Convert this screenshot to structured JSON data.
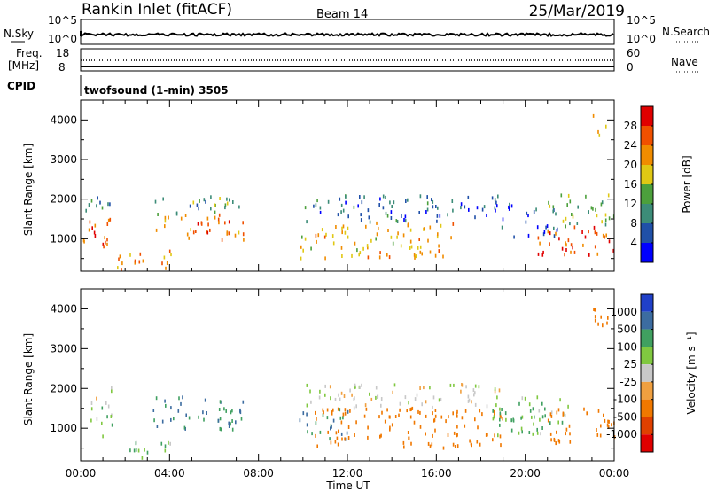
{
  "header": {
    "station": "Rankin Inlet (fitACF)",
    "beam": "Beam 14",
    "date": "25/Mar/2019"
  },
  "noise_panel": {
    "left_label": "N.Sky",
    "right_label": "N.Search",
    "left_ticks": [
      "10^5",
      "10^0"
    ],
    "right_ticks": [
      "10^5",
      "10^0"
    ]
  },
  "freq_panel": {
    "left_label_line1": "Freq.",
    "left_label_line2": "[MHz]",
    "right_label": "Nave",
    "left_ticks": [
      "18",
      "8"
    ],
    "right_ticks": [
      "60",
      "0"
    ]
  },
  "cpid_panel": {
    "label": "CPID",
    "mode": "twofsound (1-min) 3505"
  },
  "colors": {
    "power_scale": [
      "#0000ff",
      "#2050a8",
      "#3c8c78",
      "#4ca03c",
      "#e0c814",
      "#f08c00",
      "#f05000",
      "#e00000"
    ],
    "velocity_scale": [
      "#2040c8",
      "#3c6ca0",
      "#40a060",
      "#80c840",
      "#c8c8c8",
      "#f0a040",
      "#f07800",
      "#e04000",
      "#e00000"
    ]
  },
  "chart_data": [
    {
      "type": "heatmap",
      "name": "power",
      "ylabel": "Slant Range [km]",
      "ylim": [
        180,
        4500
      ],
      "yticks": [
        "1000",
        "2000",
        "3000",
        "4000"
      ],
      "xlim_hours": [
        0,
        24
      ],
      "colorbar_label": "Power [dB]",
      "colorbar_ticks": [
        "4",
        "8",
        "12",
        "16",
        "20",
        "24",
        "28"
      ],
      "colorbar_range": [
        0,
        32
      ],
      "regions": [
        {
          "t0": 0.1,
          "t1": 1.4,
          "r0": 700,
          "r1": 1600,
          "value": 26
        },
        {
          "t0": 0.1,
          "t1": 1.4,
          "r0": 1600,
          "r1": 2050,
          "value": 10
        },
        {
          "t0": 3.2,
          "t1": 7.4,
          "r0": 950,
          "r1": 1600,
          "value": 24
        },
        {
          "t0": 3.2,
          "t1": 7.4,
          "r0": 1600,
          "r1": 2100,
          "value": 12
        },
        {
          "t0": 1.6,
          "t1": 4.2,
          "r0": 200,
          "r1": 700,
          "value": 22
        },
        {
          "t0": 9.8,
          "t1": 16.8,
          "r0": 500,
          "r1": 1400,
          "value": 20
        },
        {
          "t0": 10.0,
          "t1": 19.0,
          "r0": 1400,
          "r1": 2100,
          "value": 8
        },
        {
          "t0": 18.5,
          "t1": 21.5,
          "r0": 1000,
          "r1": 1900,
          "value": 6
        },
        {
          "t0": 20.5,
          "t1": 24.0,
          "r0": 500,
          "r1": 1300,
          "value": 27
        },
        {
          "t0": 21.0,
          "t1": 24.0,
          "r0": 1300,
          "r1": 2100,
          "value": 14
        },
        {
          "t0": 23.0,
          "t1": 23.8,
          "r0": 3500,
          "r1": 4300,
          "value": 18
        }
      ]
    },
    {
      "type": "heatmap",
      "name": "velocity",
      "ylabel": "Slant Range [km]",
      "ylim": [
        180,
        4500
      ],
      "yticks": [
        "1000",
        "2000",
        "3000",
        "4000"
      ],
      "xlim_hours": [
        0,
        24
      ],
      "xticks": [
        "00:00",
        "04:00",
        "08:00",
        "12:00",
        "16:00",
        "20:00",
        "00:00"
      ],
      "xlabel": "Time UT",
      "colorbar_label": "Velocity [m s⁻¹]",
      "colorbar_ticks": [
        "1000",
        "500",
        "100",
        "25",
        "-25",
        "-100",
        "-500",
        "-1000"
      ],
      "regions": [
        {
          "t0": 0.1,
          "t1": 1.4,
          "r0": 700,
          "r1": 1600,
          "value": 100
        },
        {
          "t0": 0.1,
          "t1": 1.4,
          "r0": 1600,
          "r1": 2050,
          "value": 0
        },
        {
          "t0": 3.2,
          "t1": 7.4,
          "r0": 950,
          "r1": 1800,
          "value": 500
        },
        {
          "t0": 1.6,
          "t1": 4.2,
          "r0": 200,
          "r1": 700,
          "value": 100
        },
        {
          "t0": 9.8,
          "t1": 12.0,
          "r0": 700,
          "r1": 1500,
          "value": 500
        },
        {
          "t0": 10.5,
          "t1": 19.0,
          "r0": 500,
          "r1": 1500,
          "value": -300
        },
        {
          "t0": 10.0,
          "t1": 19.0,
          "r0": 1500,
          "r1": 2100,
          "value": 0
        },
        {
          "t0": 18.5,
          "t1": 22.0,
          "r0": 800,
          "r1": 1800,
          "value": 100
        },
        {
          "t0": 21.0,
          "t1": 24.0,
          "r0": 600,
          "r1": 1500,
          "value": -300
        },
        {
          "t0": 23.0,
          "t1": 23.8,
          "r0": 3500,
          "r1": 4300,
          "value": -300
        }
      ]
    }
  ]
}
